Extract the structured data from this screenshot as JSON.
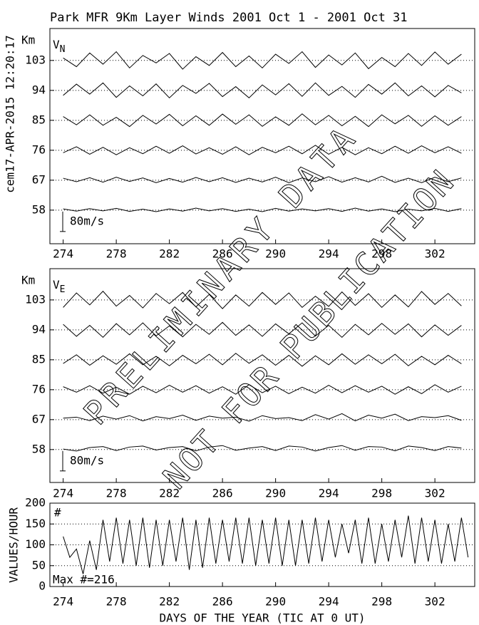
{
  "title": "Park MFR 9Km Layer Winds 2001 Oct  1 - 2001 Oct 31",
  "timestamp": "cem17-APR-2015 12:20:17",
  "watermark": [
    "PRELIMINARY DATA",
    "NOT FOR PUBLICATION"
  ],
  "chart_data": [
    {
      "type": "traces",
      "label": "V",
      "subscript": "N",
      "ylabel": "Km",
      "xlim": [
        273,
        305
      ],
      "xticks": [
        274,
        278,
        282,
        286,
        290,
        294,
        298,
        302
      ],
      "ylim": [
        47.9,
        112.6
      ],
      "yticks": [
        103,
        94,
        85,
        76,
        67,
        58
      ],
      "scale_bar": {
        "value": 80,
        "label": "80m/s"
      },
      "color": "#000000",
      "x": [
        274,
        275,
        276,
        277,
        278,
        279,
        280,
        281,
        282,
        283,
        284,
        285,
        286,
        287,
        288,
        289,
        290,
        291,
        292,
        293,
        294,
        295,
        296,
        297,
        298,
        299,
        300,
        301,
        302,
        303,
        304
      ],
      "series": [
        {
          "baseline": 103,
          "values": [
            10,
            -25,
            30,
            -15,
            35,
            -30,
            20,
            -10,
            28,
            -35,
            15,
            -20,
            32,
            -25,
            18,
            -30,
            25,
            -12,
            35,
            -28,
            22,
            -18,
            30,
            -33,
            12,
            -25,
            28,
            -20,
            34,
            -15,
            25
          ]
        },
        {
          "baseline": 94,
          "values": [
            -20,
            25,
            -15,
            30,
            -28,
            18,
            -22,
            26,
            -30,
            20,
            -12,
            28,
            -25,
            15,
            -30,
            22,
            -18,
            27,
            -24,
            30,
            -20,
            16,
            -28,
            24,
            -15,
            30,
            -22,
            18,
            -26,
            20,
            -10
          ]
        },
        {
          "baseline": 85,
          "values": [
            15,
            -18,
            22,
            -20,
            12,
            -25,
            20,
            -15,
            24,
            -22,
            18,
            -20,
            25,
            -16,
            22,
            -24,
            14,
            -20,
            26,
            -18,
            20,
            -22,
            16,
            -25,
            22,
            -14,
            20,
            -24,
            18,
            -20,
            15
          ]
        },
        {
          "baseline": 76,
          "values": [
            -10,
            14,
            -16,
            12,
            -18,
            10,
            -14,
            16,
            -12,
            18,
            -15,
            10,
            -16,
            14,
            -18,
            12,
            -10,
            16,
            -14,
            20,
            -16,
            12,
            -18,
            10,
            -14,
            16,
            -12,
            18,
            -10,
            14,
            -12
          ]
        },
        {
          "baseline": 67,
          "values": [
            8,
            -6,
            10,
            -8,
            12,
            -5,
            9,
            -10,
            7,
            -8,
            11,
            -6,
            10,
            -9,
            8,
            -7,
            12,
            -10,
            9,
            -6,
            14,
            -8,
            10,
            -7,
            16,
            -9,
            8,
            -10,
            12,
            -6,
            9
          ]
        },
        {
          "baseline": 58,
          "values": [
            5,
            -4,
            6,
            -3,
            7,
            -5,
            4,
            -6,
            5,
            -4,
            8,
            -3,
            6,
            -5,
            4,
            -6,
            7,
            -4,
            5,
            -3,
            6,
            -5,
            8,
            -4,
            5,
            -6,
            4,
            -3,
            7,
            -5,
            6
          ]
        }
      ]
    },
    {
      "type": "traces",
      "label": "V",
      "subscript": "E",
      "ylabel": "Km",
      "xlim": [
        273,
        305
      ],
      "xticks": [
        274,
        278,
        282,
        286,
        290,
        294,
        298,
        302
      ],
      "ylim": [
        48.1,
        112.4
      ],
      "yticks": [
        103,
        94,
        85,
        76,
        67,
        58
      ],
      "scale_bar": {
        "value": 80,
        "label": "80m/s"
      },
      "color": "#000000",
      "x": [
        274,
        275,
        276,
        277,
        278,
        279,
        280,
        281,
        282,
        283,
        284,
        285,
        286,
        287,
        288,
        289,
        290,
        291,
        292,
        293,
        294,
        295,
        296,
        297,
        298,
        299,
        300,
        301,
        302,
        303,
        304
      ],
      "series": [
        {
          "baseline": 103,
          "values": [
            -30,
            28,
            -20,
            35,
            -25,
            18,
            -32,
            26,
            -15,
            30,
            -28,
            22,
            -35,
            20,
            -25,
            30,
            -18,
            28,
            -30,
            15,
            -26,
            32,
            -22,
            25,
            -30,
            20,
            -28,
            34,
            -18,
            26,
            -24
          ]
        },
        {
          "baseline": 94,
          "values": [
            22,
            -26,
            18,
            -30,
            25,
            -20,
            28,
            -24,
            16,
            -28,
            22,
            -18,
            30,
            -22,
            20,
            -26,
            24,
            -16,
            28,
            -25,
            18,
            -30,
            22,
            -20,
            26,
            -18,
            24,
            -28,
            20,
            -22,
            18
          ]
        },
        {
          "baseline": 85,
          "values": [
            -15,
            20,
            -22,
            16,
            -18,
            24,
            -20,
            14,
            -24,
            18,
            -16,
            22,
            -20,
            26,
            -14,
            20,
            -22,
            18,
            -26,
            16,
            -20,
            24,
            -18,
            20,
            -16,
            22,
            -24,
            14,
            -20,
            18,
            -16
          ]
        },
        {
          "baseline": 76,
          "values": [
            12,
            -10,
            16,
            -14,
            10,
            -18,
            14,
            -12,
            18,
            -10,
            16,
            -14,
            12,
            -18,
            20,
            -12,
            14,
            -16,
            10,
            -14,
            18,
            -12,
            16,
            -10,
            14,
            -18,
            12,
            -16,
            20,
            -10,
            14
          ]
        },
        {
          "baseline": 67,
          "values": [
            6,
            10,
            -4,
            14,
            2,
            16,
            -5,
            12,
            4,
            18,
            -3,
            14,
            6,
            10,
            -6,
            16,
            4,
            8,
            -4,
            20,
            2,
            24,
            -5,
            18,
            6,
            22,
            -4,
            12,
            8,
            16,
            -3
          ]
        },
        {
          "baseline": 58,
          "values": [
            2,
            -6,
            8,
            12,
            -4,
            10,
            14,
            -2,
            8,
            12,
            -5,
            10,
            16,
            -3,
            6,
            12,
            -4,
            14,
            10,
            -6,
            8,
            16,
            -3,
            12,
            10,
            -5,
            14,
            8,
            -4,
            12,
            6
          ]
        }
      ]
    },
    {
      "type": "line",
      "ylabel": "VALUES/HOUR",
      "xlabel": "DAYS OF THE YEAR (TIC AT 0 UT)",
      "annotations": [
        "#",
        "Max #=216"
      ],
      "color": "#000000",
      "grid": true,
      "xlim": [
        273,
        305
      ],
      "xticks": [
        274,
        278,
        282,
        286,
        290,
        294,
        298,
        302
      ],
      "ylim": [
        0,
        200
      ],
      "yticks": [
        200,
        150,
        100,
        50,
        0
      ],
      "x": [
        274,
        274.5,
        275,
        275.5,
        276,
        276.5,
        277,
        277.5,
        278,
        278.5,
        279,
        279.5,
        280,
        280.5,
        281,
        281.5,
        282,
        282.5,
        283,
        283.5,
        284,
        284.5,
        285,
        285.5,
        286,
        286.5,
        287,
        287.5,
        288,
        288.5,
        289,
        289.5,
        290,
        290.5,
        291,
        291.5,
        292,
        292.5,
        293,
        293.5,
        294,
        294.5,
        295,
        295.5,
        296,
        296.5,
        297,
        297.5,
        298,
        298.5,
        299,
        299.5,
        300,
        300.5,
        301,
        301.5,
        302,
        302.5,
        303,
        303.5,
        304,
        304.5
      ],
      "values": [
        120,
        70,
        90,
        30,
        110,
        40,
        160,
        60,
        165,
        55,
        160,
        50,
        165,
        45,
        160,
        50,
        160,
        60,
        165,
        40,
        160,
        45,
        165,
        55,
        160,
        60,
        165,
        55,
        165,
        50,
        160,
        55,
        165,
        50,
        160,
        50,
        160,
        55,
        165,
        60,
        160,
        70,
        150,
        80,
        160,
        55,
        165,
        55,
        150,
        60,
        160,
        70,
        170,
        55,
        165,
        60,
        160,
        55,
        150,
        60,
        165,
        70
      ]
    }
  ]
}
